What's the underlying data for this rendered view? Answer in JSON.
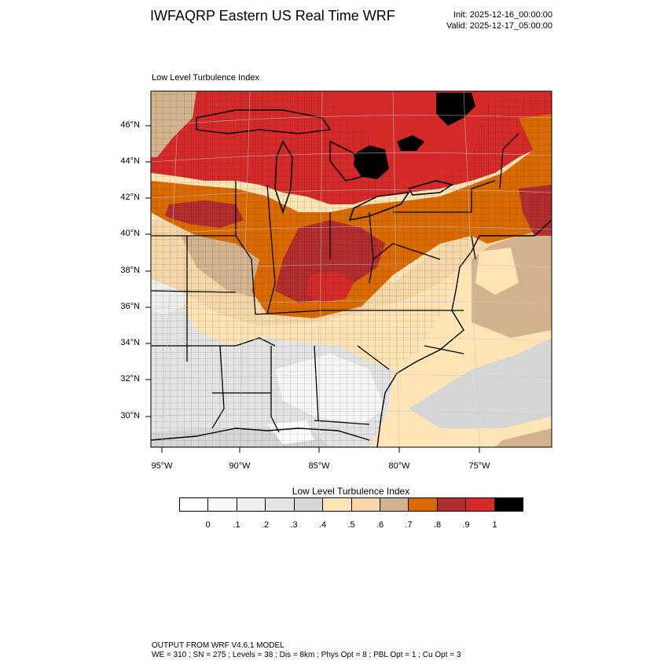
{
  "header": {
    "title": "IWFAQRP Eastern US Real Time WRF",
    "init": "Init: 2025-12-16_00:00:00",
    "valid": "Valid: 2025-12-17_05:00:00"
  },
  "panel_title": "Low Level Turbulence Index",
  "map": {
    "lat_labels": [
      "46°N",
      "44°N",
      "42°N",
      "40°N",
      "38°N",
      "36°N",
      "34°N",
      "32°N",
      "30°N"
    ],
    "lon_labels": [
      "95°W",
      "90°W",
      "85°W",
      "80°W",
      "75°W"
    ]
  },
  "legend": {
    "title": "Low Level Turbulence Index",
    "labels": [
      "0",
      ".1",
      ".2",
      ".3",
      ".4",
      ".5",
      ".6",
      ".7",
      ".8",
      ".9",
      "1"
    ],
    "colors": [
      "#ffffff",
      "#f7f7f7",
      "#efefef",
      "#e3e3e3",
      "#d6d6d6",
      "#ffe4b5",
      "#f6d7a7",
      "#d3b38e",
      "#d86a00",
      "#b22d2d",
      "#d42a2a",
      "#000000"
    ]
  },
  "footer": {
    "line1": "OUTPUT FROM WRF V4.6.1 MODEL",
    "line2": "WE = 310 ; SN = 275 ; Levels = 38 ; Dis = 8km ; Phys Opt = 8 ; PBL Opt = 1 ; Cu Opt = 3"
  }
}
